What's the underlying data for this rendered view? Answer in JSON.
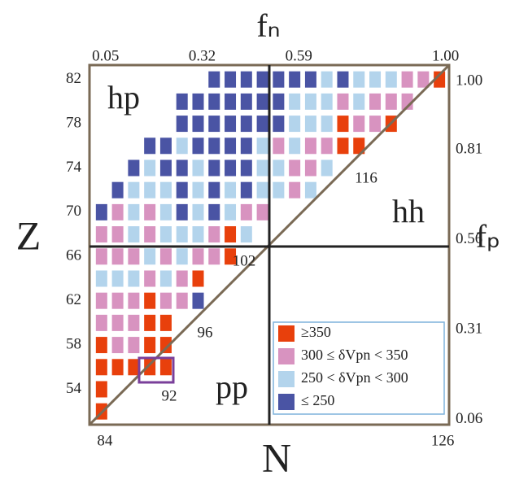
{
  "chart_data": {
    "type": "scatter",
    "x_label": "N",
    "y_label": "Z",
    "x2_label": "fₙ",
    "y2_label": "fₚ",
    "xlim": [
      82.5,
      127.2
    ],
    "xticks": [
      84,
      126
    ],
    "ylim": [
      50.8,
      83.3
    ],
    "yticks": [
      54,
      58,
      62,
      66,
      70,
      74,
      78,
      82
    ],
    "x2lim": [
      0.005,
      1.01
    ],
    "x2ticks": [
      0.05,
      0.32,
      0.59,
      {
        "value": 1,
        "label": "1.00"
      }
    ],
    "y2lim": [
      0.046,
      1.045
    ],
    "y2ticks": [
      0.06,
      0.31,
      0.56,
      0.81,
      {
        "value": 1,
        "label": "1.00"
      }
    ],
    "regions": [
      "hp",
      "hh",
      "pp"
    ],
    "annotations": [
      "116",
      "102",
      "96",
      "92"
    ],
    "series": [
      {
        "name": "≥350",
        "color": "#e8400c",
        "x": [
          126,
          114,
          120,
          114,
          116,
          100,
          100,
          96,
          90,
          90,
          92,
          84,
          90,
          92,
          84,
          86,
          88,
          90,
          92,
          84,
          84
        ],
        "y": [
          82,
          78,
          78,
          76,
          76,
          68,
          66,
          64,
          62,
          60,
          60,
          58,
          58,
          58,
          56,
          56,
          56,
          56,
          56,
          54,
          52
        ]
      },
      {
        "name": "300 ≤ δVpn < 350",
        "color": "#d893c0",
        "x": [
          122,
          124,
          114,
          118,
          120,
          122,
          116,
          118,
          106,
          110,
          112,
          108,
          110,
          108,
          86,
          90,
          102,
          104,
          84,
          86,
          90,
          98,
          84,
          86,
          88,
          92,
          96,
          98,
          90,
          94,
          84,
          86,
          88,
          92,
          94,
          84,
          86,
          88,
          86,
          88
        ],
        "y": [
          82,
          82,
          80,
          80,
          80,
          80,
          78,
          78,
          76,
          76,
          76,
          74,
          74,
          72,
          70,
          70,
          70,
          70,
          68,
          68,
          68,
          68,
          66,
          66,
          66,
          66,
          66,
          66,
          64,
          64,
          62,
          62,
          62,
          62,
          62,
          60,
          60,
          60,
          58,
          58
        ]
      },
      {
        "name": "250 < δVpn < 300",
        "color": "#b3d4ec",
        "x": [
          112,
          116,
          118,
          120,
          108,
          110,
          112,
          116,
          108,
          110,
          112,
          94,
          104,
          108,
          90,
          96,
          104,
          106,
          112,
          88,
          90,
          92,
          96,
          100,
          104,
          106,
          110,
          88,
          92,
          96,
          100,
          88,
          92,
          94,
          96,
          102,
          90,
          94,
          84,
          86,
          88,
          92
        ],
        "y": [
          82,
          82,
          82,
          82,
          80,
          80,
          80,
          80,
          78,
          78,
          78,
          76,
          76,
          76,
          74,
          74,
          74,
          74,
          74,
          72,
          72,
          72,
          72,
          72,
          72,
          72,
          72,
          70,
          70,
          70,
          70,
          68,
          68,
          68,
          68,
          68,
          66,
          66,
          64,
          64,
          64,
          64
        ]
      },
      {
        "name": "≤ 250",
        "color": "#4a54a4",
        "x": [
          98,
          100,
          102,
          104,
          106,
          108,
          110,
          114,
          94,
          96,
          98,
          100,
          102,
          104,
          106,
          94,
          96,
          98,
          100,
          102,
          104,
          106,
          90,
          92,
          96,
          98,
          100,
          102,
          88,
          92,
          94,
          98,
          100,
          102,
          86,
          94,
          98,
          102,
          84,
          94,
          98,
          96
        ],
        "y": [
          82,
          82,
          82,
          82,
          82,
          82,
          82,
          82,
          80,
          80,
          80,
          80,
          80,
          80,
          80,
          78,
          78,
          78,
          78,
          78,
          78,
          78,
          76,
          76,
          76,
          76,
          76,
          76,
          74,
          74,
          74,
          74,
          74,
          74,
          72,
          72,
          72,
          72,
          70,
          70,
          70,
          62
        ]
      }
    ]
  }
}
